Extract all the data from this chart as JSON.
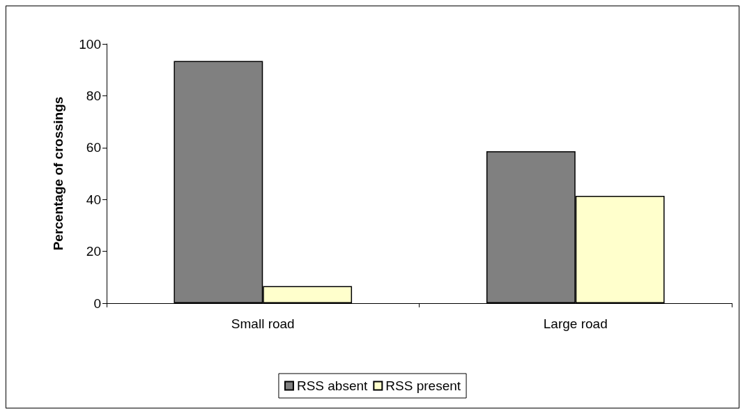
{
  "chart_data": {
    "type": "bar",
    "ylabel": "Percentage of crossings",
    "categories": [
      "Small road",
      "Large road"
    ],
    "series": [
      {
        "name": "RSS absent",
        "color": "#808080",
        "values": [
          93.4,
          58.6
        ]
      },
      {
        "name": "RSS present",
        "color": "#ffffcc",
        "values": [
          6.6,
          41.4
        ]
      }
    ],
    "ylim": [
      0,
      100
    ],
    "yticks": [
      0,
      20,
      40,
      60,
      80,
      100
    ],
    "grid": false,
    "legend": "bottom"
  }
}
